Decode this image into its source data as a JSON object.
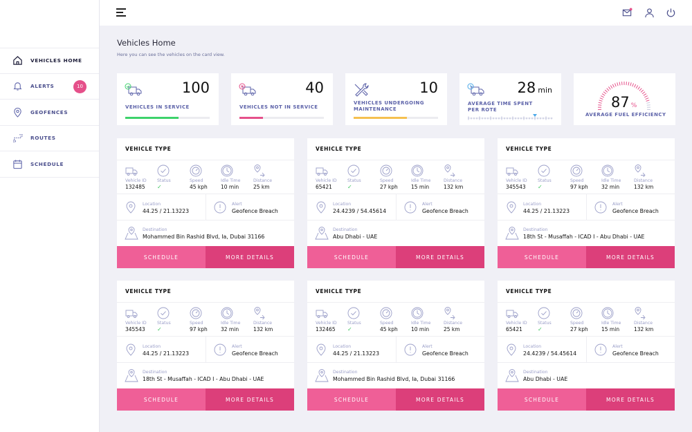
{
  "sidebar": {
    "items": [
      {
        "label": "VEHICLES HOME",
        "icon": "home-icon"
      },
      {
        "label": "ALERTS",
        "icon": "bell-icon",
        "badge": "10"
      },
      {
        "label": "GEOFENCES",
        "icon": "map-pin-icon"
      },
      {
        "label": "ROUTES",
        "icon": "route-icon"
      },
      {
        "label": "SCHEDULE",
        "icon": "calendar-icon"
      }
    ]
  },
  "header": {
    "icons": [
      "menu-icon",
      "mail-icon",
      "user-icon",
      "power-icon"
    ],
    "notification_color": "#e5508a"
  },
  "page": {
    "title": "Vehicles Home",
    "subtitle": "Here you can see the vehicles on the card view."
  },
  "stats": [
    {
      "number": "100",
      "label": "VEHICLES IN SERVICE",
      "progress": 0.63,
      "color": "#3dd26b"
    },
    {
      "number": "40",
      "label": "VEHICLES NOT IN SERVICE",
      "progress": 0.28,
      "color": "#e5508a"
    },
    {
      "number": "10",
      "label_line1": "VEHICLES UNDERGOING",
      "label_line2": "MAINTENANCE",
      "progress": 0.63,
      "color": "#f5c04f"
    },
    {
      "number": "28",
      "unit": "min",
      "label_line1": "AVERAGE TIME SPENT",
      "label_line2": "PER ROTE"
    },
    {
      "number": "87",
      "unit": "%",
      "label": "AVERAGE FUEL EFFICIENCY",
      "gauge": 0.87
    }
  ],
  "card_labels": {
    "title": "VEHICLE TYPE",
    "vehicle_id": "Vehicle ID",
    "status": "Status",
    "speed": "Speed",
    "idle_time": "Idle Time",
    "distance": "Distance",
    "location": "Location",
    "alert": "Alert",
    "destination": "Destination",
    "schedule_btn": "SCHEDULE",
    "details_btn": "MORE DETAILS",
    "status_ok": "✓"
  },
  "vehicles": [
    {
      "id": "132485",
      "speed": "45 kph",
      "idle": "10 min",
      "distance": "25 km",
      "location": "44.25 / 21.13223",
      "alert": "Geofence Breach",
      "destination": "Mohammed Bin Rashid Blvd, Ia, Dubai 31166"
    },
    {
      "id": "65421",
      "speed": "27 kph",
      "idle": "15 min",
      "distance": "132 km",
      "location": "24.4239 / 54.45614",
      "alert": "Geofence Breach",
      "destination": "Abu Dhabi - UAE"
    },
    {
      "id": "345543",
      "speed": "97 kph",
      "idle": "32 min",
      "distance": "132 km",
      "location": "44.25 / 21.13223",
      "alert": "Geofence Breach",
      "destination": "18th St - Musaffah - ICAD I - Abu Dhabi - UAE"
    },
    {
      "id": "345543",
      "speed": "97 kph",
      "idle": "32 min",
      "distance": "132 km",
      "location": "44.25 / 21.13223",
      "alert": "Geofence Breach",
      "destination": "18th St - Musaffah - ICAD I - Abu Dhabi - UAE"
    },
    {
      "id": "132465",
      "speed": "45 kph",
      "idle": "10 min",
      "distance": "25 km",
      "location": "44.25 / 21.13223",
      "alert": "Geofence Breach",
      "destination": "Mohammed Bin Rashid Blvd, Ia, Dubai 31166"
    },
    {
      "id": "65421",
      "speed": "27 kph",
      "idle": "15 min",
      "distance": "132 km",
      "location": "24.4239 / 54.45614",
      "alert": "Geofence Breach",
      "destination": "Abu Dhabi - UAE"
    }
  ]
}
